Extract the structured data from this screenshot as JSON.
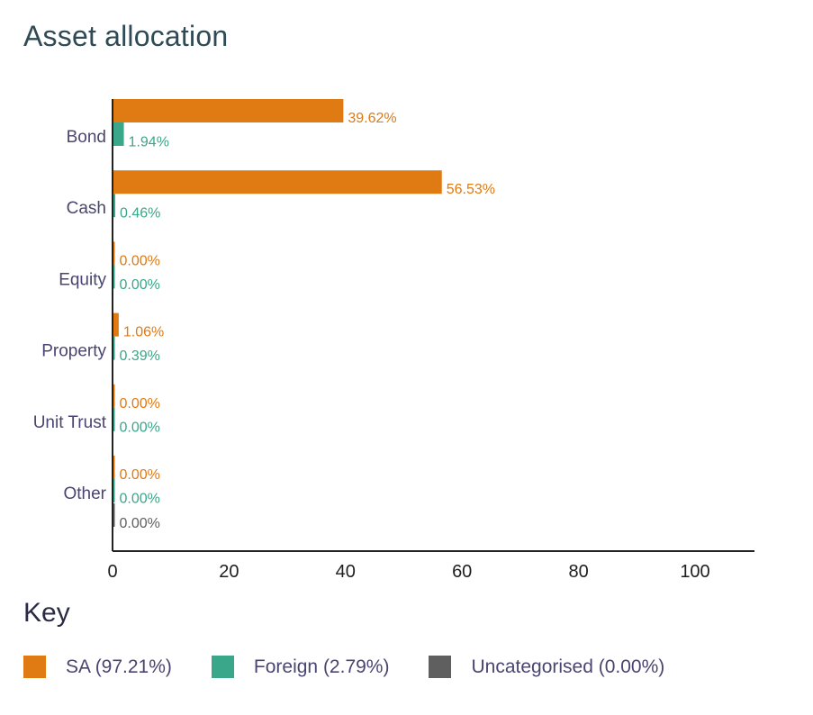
{
  "title": "Asset allocation",
  "key_heading": "Key",
  "legend": [
    {
      "label": "SA (97.21%)",
      "color": "#e07a12"
    },
    {
      "label": "Foreign (2.79%)",
      "color": "#3aa68a"
    },
    {
      "label": "Uncategorised (0.00%)",
      "color": "#5f5f5f"
    }
  ],
  "chart_data": {
    "type": "bar",
    "orientation": "horizontal",
    "categories": [
      "Bond",
      "Cash",
      "Equity",
      "Property",
      "Unit Trust",
      "Other"
    ],
    "series": [
      {
        "name": "SA",
        "color": "#e07a12",
        "values": [
          39.62,
          56.53,
          0.0,
          1.06,
          0.0,
          0.0
        ],
        "labels": [
          "39.62%",
          "56.53%",
          "0.00%",
          "1.06%",
          "0.00%",
          "0.00%"
        ]
      },
      {
        "name": "Foreign",
        "color": "#3aa68a",
        "values": [
          1.94,
          0.46,
          0.0,
          0.39,
          0.0,
          0.0
        ],
        "labels": [
          "1.94%",
          "0.46%",
          "0.00%",
          "0.39%",
          "0.00%",
          "0.00%"
        ]
      },
      {
        "name": "Uncategorised",
        "color": "#5f5f5f",
        "values": [
          null,
          null,
          null,
          null,
          null,
          0.0
        ],
        "labels": [
          null,
          null,
          null,
          null,
          null,
          "0.00%"
        ]
      }
    ],
    "xlim": [
      0,
      110
    ],
    "xticks": [
      0,
      20,
      40,
      60,
      80,
      100
    ],
    "grid": false
  }
}
